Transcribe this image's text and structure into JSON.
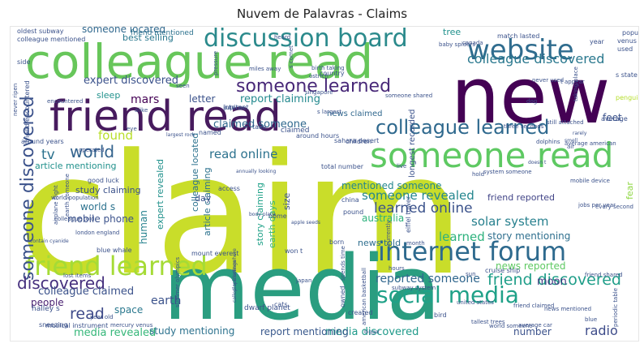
{
  "chart_data": {
    "type": "wordcloud",
    "title": "Nuvem de Palavras - Claims",
    "words": [
      {
        "text": "claim",
        "color": "#c9dd2a"
      },
      {
        "text": "media",
        "color": "#2a9d80"
      },
      {
        "text": "new",
        "color": "#440154"
      },
      {
        "text": "colleague read",
        "color": "#67c65a"
      },
      {
        "text": "friend read",
        "color": "#471b5e"
      },
      {
        "text": "someone read",
        "color": "#5ec962"
      },
      {
        "text": "website",
        "color": "#2f6c8e"
      },
      {
        "text": "discussion board",
        "color": "#2b8a8c"
      },
      {
        "text": "internet forum",
        "color": "#2e6a8e"
      },
      {
        "text": "friend learned",
        "color": "#a5db36"
      },
      {
        "text": "someone learned",
        "color": "#482878"
      },
      {
        "text": "colleague learned",
        "color": "#2f698e"
      },
      {
        "text": "social media",
        "color": "#1fa188"
      },
      {
        "text": "someone discovered",
        "color": "#3b528b"
      },
      {
        "text": "world",
        "color": "#33638d"
      },
      {
        "text": "colleague discovered",
        "color": "#2a788e"
      },
      {
        "text": "learned online",
        "color": "#3b528b"
      },
      {
        "text": "friend discovered",
        "color": "#1f9e89"
      },
      {
        "text": "read online",
        "color": "#2c728e"
      },
      {
        "text": "discovered",
        "color": "#46307e"
      },
      {
        "text": "someone revealed",
        "color": "#24868e"
      },
      {
        "text": "solar system",
        "color": "#27808e"
      },
      {
        "text": "read",
        "color": "#3e4a89"
      },
      {
        "text": "reported someone",
        "color": "#31678e"
      },
      {
        "text": "radio",
        "color": "#3e4c8a"
      },
      {
        "text": "expert discovered",
        "color": "#3b528b"
      },
      {
        "text": "mars",
        "color": "#440154"
      },
      {
        "text": "report claiming",
        "color": "#23898e"
      },
      {
        "text": "tv",
        "color": "#2c728e"
      },
      {
        "text": "found",
        "color": "#b8de29"
      },
      {
        "text": "learned",
        "color": "#2db27d"
      },
      {
        "text": "australia",
        "color": "#2db27d"
      },
      {
        "text": "claimed someone",
        "color": "#30698e"
      },
      {
        "text": "media revealed",
        "color": "#35b779"
      },
      {
        "text": "media discovered",
        "color": "#1f9a8a"
      },
      {
        "text": "report mentioning",
        "color": "#38588c"
      },
      {
        "text": "study mentioning",
        "color": "#2c728e"
      },
      {
        "text": "earth",
        "color": "#3b528b"
      },
      {
        "text": "news told",
        "color": "#2e6e8e"
      },
      {
        "text": "colleague claimed",
        "color": "#3b528b"
      },
      {
        "text": "story mentioning",
        "color": "#2e6f8e"
      },
      {
        "text": "news reported",
        "color": "#5ec962"
      },
      {
        "text": "friend reported",
        "color": "#414487"
      },
      {
        "text": "mentioned someone",
        "color": "#24868e"
      },
      {
        "text": "article mentioning",
        "color": "#21918c"
      },
      {
        "text": "space",
        "color": "#2a788e"
      },
      {
        "text": "moon",
        "color": "#443983"
      },
      {
        "text": "people",
        "color": "#481f70"
      },
      {
        "text": "number",
        "color": "#3b528b"
      },
      {
        "text": "mobile phone",
        "color": "#3b528b"
      },
      {
        "text": "expert revealed",
        "color": "#21918c"
      },
      {
        "text": "article claiming",
        "color": "#2c728e"
      },
      {
        "text": "story claiming",
        "color": "#1fa188"
      },
      {
        "text": "colleague located",
        "color": "#2c728e"
      },
      {
        "text": "letter",
        "color": "#3b528b"
      },
      {
        "text": "best selling",
        "color": "#2a788e"
      },
      {
        "text": "someone located",
        "color": "#31688e"
      },
      {
        "text": "sleep",
        "color": "#21918c"
      },
      {
        "text": "feet",
        "color": "#3b528b"
      },
      {
        "text": "human",
        "color": "#26828e"
      },
      {
        "text": "study claiming",
        "color": "#3b528b"
      },
      {
        "text": "world s",
        "color": "#2c728e"
      },
      {
        "text": "day",
        "color": "#3b528b"
      },
      {
        "text": "size",
        "color": "#3b528b"
      },
      {
        "text": "earth days",
        "color": "#35b779"
      },
      {
        "text": "news claimed",
        "color": "#31688e"
      },
      {
        "text": "tree",
        "color": "#21918c"
      },
      {
        "text": "fear",
        "color": "#8fd744"
      },
      {
        "text": "friend mentioned",
        "color": "#2c728e"
      },
      {
        "text": "colleague mentioned",
        "color": "#3b528b"
      },
      {
        "text": "colleague reported",
        "color": "#3b528b"
      },
      {
        "text": "match lasted",
        "color": "#3b528b"
      },
      {
        "text": "year",
        "color": "#3b528b"
      },
      {
        "text": "population",
        "color": "#3b528b"
      },
      {
        "text": "venus",
        "color": "#3b528b"
      },
      {
        "text": "used",
        "color": "#3b528b"
      },
      {
        "text": "s state",
        "color": "#3b528b"
      },
      {
        "text": "penguins",
        "color": "#b5de2b"
      },
      {
        "text": "average",
        "color": "#3b528b"
      },
      {
        "text": "friend encountered",
        "color": "#3b528b"
      },
      {
        "text": "around years",
        "color": "#3b528b"
      },
      {
        "text": "claimed",
        "color": "#3b528b"
      },
      {
        "text": "take",
        "color": "#3b528b"
      },
      {
        "text": "access",
        "color": "#3b528b"
      },
      {
        "text": "named",
        "color": "#3b528b"
      },
      {
        "text": "internet",
        "color": "#3b528b"
      },
      {
        "text": "jupiter",
        "color": "#3b528b"
      },
      {
        "text": "children",
        "color": "#3b528b"
      },
      {
        "text": "around hours",
        "color": "#3b528b"
      },
      {
        "text": "total number",
        "color": "#3b528b"
      },
      {
        "text": "sahara desert",
        "color": "#3b528b"
      },
      {
        "text": "good luck",
        "color": "#3b528b"
      },
      {
        "text": "world population",
        "color": "#3b528b"
      },
      {
        "text": "colleague told",
        "color": "#3b528b"
      },
      {
        "text": "london england",
        "color": "#3b528b"
      },
      {
        "text": "blue whale",
        "color": "#3b528b"
      },
      {
        "text": "mount everest",
        "color": "#3b528b"
      },
      {
        "text": "won t",
        "color": "#3b528b"
      },
      {
        "text": "summer olympics",
        "color": "#3b528b"
      },
      {
        "text": "lost items",
        "color": "#3b528b"
      },
      {
        "text": "sneezing",
        "color": "#3b528b"
      },
      {
        "text": "halley s",
        "color": "#3b528b"
      },
      {
        "text": "musical instrument",
        "color": "#3b528b"
      },
      {
        "text": "mercury venus",
        "color": "#3b528b"
      },
      {
        "text": "year old",
        "color": "#3b528b"
      },
      {
        "text": "dwarf planet",
        "color": "#3b528b"
      },
      {
        "text": "cats",
        "color": "#3b528b"
      },
      {
        "text": "japan",
        "color": "#3b528b"
      },
      {
        "text": "subway system",
        "color": "#3b528b"
      },
      {
        "text": "bird",
        "color": "#3b528b"
      },
      {
        "text": "created",
        "color": "#3b528b"
      },
      {
        "text": "owned",
        "color": "#3b528b"
      },
      {
        "text": "hours",
        "color": "#3b528b"
      },
      {
        "text": "sun",
        "color": "#3b528b"
      },
      {
        "text": "cruise ship",
        "color": "#3b528b"
      },
      {
        "text": "friend claimed",
        "color": "#3b528b"
      },
      {
        "text": "news mentioned",
        "color": "#3b528b"
      },
      {
        "text": "world someone",
        "color": "#3b528b"
      },
      {
        "text": "tallest trees",
        "color": "#3b528b"
      },
      {
        "text": "average car",
        "color": "#3b528b"
      },
      {
        "text": "blue",
        "color": "#3b528b"
      },
      {
        "text": "friend shared",
        "color": "#3b528b"
      },
      {
        "text": "periodic table",
        "color": "#3b528b"
      },
      {
        "text": "jobs per year",
        "color": "#3b528b"
      },
      {
        "text": "every second",
        "color": "#3b528b"
      },
      {
        "text": "mobile device",
        "color": "#3b528b"
      },
      {
        "text": "system someone",
        "color": "#3b528b"
      },
      {
        "text": "eiffel tower",
        "color": "#3b528b"
      },
      {
        "text": "currently",
        "color": "#3b528b"
      },
      {
        "text": "china",
        "color": "#3b528b"
      },
      {
        "text": "pound",
        "color": "#3b528b"
      },
      {
        "text": "born",
        "color": "#3b528b"
      },
      {
        "text": "month",
        "color": "#3b528b"
      },
      {
        "text": "longest recorded",
        "color": "#3b528b"
      },
      {
        "text": "home",
        "color": "#3b528b"
      },
      {
        "text": "apple seeds",
        "color": "#3b528b"
      },
      {
        "text": "hold",
        "color": "#3b528b"
      },
      {
        "text": "live",
        "color": "#3b528b"
      },
      {
        "text": "doesn t",
        "color": "#3b528b"
      },
      {
        "text": "still attached",
        "color": "#3b528b"
      },
      {
        "text": "average american",
        "color": "#3b528b"
      },
      {
        "text": "dolphins",
        "color": "#3b528b"
      },
      {
        "text": "air",
        "color": "#3b528b"
      },
      {
        "text": "never used",
        "color": "#3b528b"
      },
      {
        "text": "dog",
        "color": "#3b528b"
      },
      {
        "text": "country",
        "color": "#3b528b"
      },
      {
        "text": "singapore",
        "color": "#3b528b"
      },
      {
        "text": "s largest",
        "color": "#3b528b"
      },
      {
        "text": "three seconds",
        "color": "#3b528b"
      },
      {
        "text": "oldest subway",
        "color": "#3b528b"
      },
      {
        "text": "heard",
        "color": "#3b528b"
      },
      {
        "text": "encountered",
        "color": "#3b528b"
      },
      {
        "text": "seen",
        "color": "#3b528b"
      },
      {
        "text": "side",
        "color": "#3b528b"
      },
      {
        "text": "pressure",
        "color": "#3b528b"
      },
      {
        "text": "birth taking",
        "color": "#3b528b"
      },
      {
        "text": "miles away",
        "color": "#3b528b"
      },
      {
        "text": "ostrich",
        "color": "#3b528b"
      },
      {
        "text": "s comet",
        "color": "#3b528b"
      },
      {
        "text": "canada",
        "color": "#3b528b"
      },
      {
        "text": "baby spiders",
        "color": "#3b528b"
      },
      {
        "text": "t appear",
        "color": "#3b528b"
      },
      {
        "text": "someone shared",
        "color": "#3b528b"
      },
      {
        "text": "largest rock",
        "color": "#3b528b"
      },
      {
        "text": "eye",
        "color": "#3b528b"
      },
      {
        "text": "operated",
        "color": "#3b528b"
      },
      {
        "text": "alike",
        "color": "#3b528b"
      },
      {
        "text": "earth someone",
        "color": "#3b528b"
      },
      {
        "text": "airplane flight",
        "color": "#3b528b"
      },
      {
        "text": "spends time",
        "color": "#3b528b"
      },
      {
        "text": "american basketball",
        "color": "#3b528b"
      },
      {
        "text": "united states",
        "color": "#3b528b"
      },
      {
        "text": "place somewhere",
        "color": "#3b528b"
      },
      {
        "text": "called spiderlings",
        "color": "#3b528b"
      },
      {
        "text": "contain cyanide",
        "color": "#3b528b"
      },
      {
        "text": "body place",
        "color": "#3b528b"
      },
      {
        "text": "bigger",
        "color": "#3b528b"
      },
      {
        "text": "smell",
        "color": "#3b528b"
      },
      {
        "text": "taking place",
        "color": "#3b528b"
      },
      {
        "text": "never ripen",
        "color": "#3b528b"
      },
      {
        "text": "annually looking",
        "color": "#3b528b"
      },
      {
        "text": "rarely",
        "color": "#3b528b"
      },
      {
        "text": "lose knowledge",
        "color": "#3b528b"
      }
    ]
  }
}
